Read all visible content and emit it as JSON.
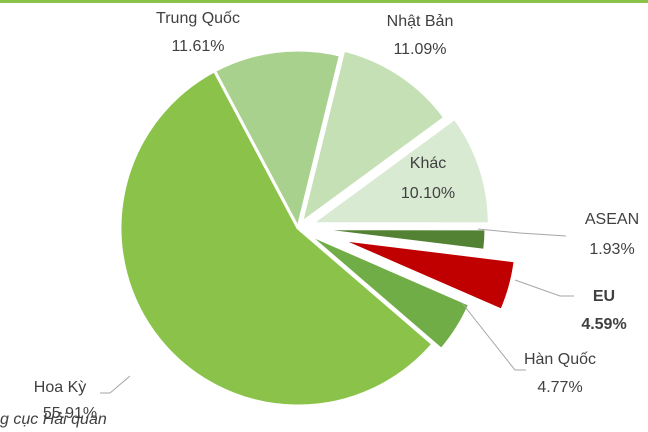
{
  "chart_data": {
    "type": "pie",
    "categories": [
      "Trung Quốc",
      "Nhật Bản",
      "Khác",
      "ASEAN",
      "EU",
      "Hàn Quốc",
      "Hoa Kỳ"
    ],
    "values": [
      11.61,
      11.09,
      10.1,
      1.93,
      4.59,
      4.77,
      55.91
    ],
    "value_labels": [
      "11.61%",
      "11.09%",
      "10.10%",
      "1.93%",
      "4.59%",
      "4.77%",
      "55.91%"
    ],
    "colors": [
      "#a9d18e",
      "#c5e0b4",
      "#d9ead3",
      "#548235",
      "#c00000",
      "#70ad47",
      "#8bc34a"
    ],
    "source": "g cục Hải quan"
  }
}
